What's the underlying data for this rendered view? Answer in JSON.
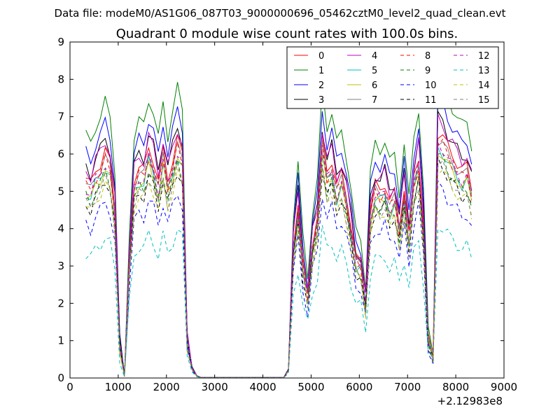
{
  "chart_data": {
    "type": "line",
    "suptitle": "Data file: modeM0/AS1G06_087T03_9000000696_05462cztM0_level2_quad_clean.evt",
    "title": "Quadrant 0 module wise count rates with 100.0s bins.",
    "xlabel": "",
    "ylabel": "",
    "x_offset_label": "+2.12983e8",
    "xlim": [
      0,
      9000
    ],
    "ylim": [
      0,
      9
    ],
    "xticks": [
      0,
      1000,
      2000,
      3000,
      4000,
      5000,
      6000,
      7000,
      8000,
      9000
    ],
    "yticks": [
      0,
      1,
      2,
      3,
      4,
      5,
      6,
      7,
      8,
      9
    ],
    "grid": false,
    "legend_position": "top-right",
    "legend_columns": 4,
    "x": [
      330,
      430,
      530,
      630,
      730,
      830,
      930,
      1030,
      1130,
      1230,
      1330,
      1430,
      1530,
      1630,
      1730,
      1830,
      1930,
      2030,
      2130,
      2230,
      2330,
      2430,
      2530,
      2630,
      2730,
      2830,
      2930,
      3030,
      3130,
      3230,
      3330,
      3430,
      3530,
      3630,
      3730,
      3830,
      3930,
      4030,
      4130,
      4230,
      4330,
      4430,
      4530,
      4630,
      4730,
      4830,
      4930,
      5030,
      5130,
      5230,
      5330,
      5430,
      5530,
      5630,
      5730,
      5830,
      5930,
      6030,
      6130,
      6230,
      6330,
      6430,
      6530,
      6630,
      6730,
      6830,
      6930,
      7030,
      7130,
      7230,
      7330,
      7430,
      7530,
      7630,
      7730,
      7830,
      7930,
      8030,
      8130,
      8230,
      8330
    ],
    "base_profile": [
      5.2,
      5.0,
      5.4,
      5.6,
      5.9,
      5.6,
      4.5,
      0.9,
      0.05,
      3.1,
      5.2,
      5.5,
      5.4,
      6.0,
      5.7,
      5.1,
      5.9,
      5.2,
      5.7,
      6.2,
      5.8,
      1.0,
      0.25,
      0.05,
      0.01,
      0.01,
      0.01,
      0.01,
      0.01,
      0.01,
      0.01,
      0.01,
      0.01,
      0.01,
      0.01,
      0.01,
      0.01,
      0.01,
      0.01,
      0.01,
      0.01,
      0.01,
      0.2,
      3.5,
      4.6,
      3.0,
      2.2,
      3.6,
      4.2,
      6.2,
      5.4,
      5.7,
      5.0,
      5.3,
      4.8,
      4.0,
      3.1,
      3.0,
      2.0,
      4.4,
      5.0,
      4.9,
      5.1,
      4.6,
      4.8,
      4.0,
      5.0,
      3.8,
      5.2,
      5.8,
      4.0,
      1.0,
      0.6,
      6.4,
      6.3,
      6.0,
      5.8,
      5.6,
      5.4,
      5.5,
      5.0
    ],
    "series": [
      {
        "name": "0",
        "color": "#ff0000",
        "style": "solid",
        "scale": 1.03
      },
      {
        "name": "1",
        "color": "#008000",
        "style": "solid",
        "scale": 1.25
      },
      {
        "name": "2",
        "color": "#0000ff",
        "style": "solid",
        "scale": 1.16
      },
      {
        "name": "3",
        "color": "#000000",
        "style": "solid",
        "scale": 1.09
      },
      {
        "name": "4",
        "color": "#bf00bf",
        "style": "solid",
        "scale": 1.08
      },
      {
        "name": "5",
        "color": "#00bfbf",
        "style": "solid",
        "scale": 0.96
      },
      {
        "name": "6",
        "color": "#bfbf00",
        "style": "solid",
        "scale": 0.95
      },
      {
        "name": "7",
        "color": "#808080",
        "style": "solid",
        "scale": 1.0
      },
      {
        "name": "8",
        "color": "#ff0000",
        "style": "dashed",
        "scale": 0.99
      },
      {
        "name": "9",
        "color": "#008000",
        "style": "dashed",
        "scale": 0.93
      },
      {
        "name": "10",
        "color": "#0000ff",
        "style": "dashed",
        "scale": 0.8
      },
      {
        "name": "11",
        "color": "#000000",
        "style": "dashed",
        "scale": 0.9
      },
      {
        "name": "12",
        "color": "#bf00bf",
        "style": "dashed",
        "scale": 0.98
      },
      {
        "name": "13",
        "color": "#00bfbf",
        "style": "dashed",
        "scale": 0.64
      },
      {
        "name": "14",
        "color": "#bfbf00",
        "style": "dashed",
        "scale": 0.88
      },
      {
        "name": "15",
        "color": "#808080",
        "style": "dashed",
        "scale": 0.9
      }
    ]
  }
}
